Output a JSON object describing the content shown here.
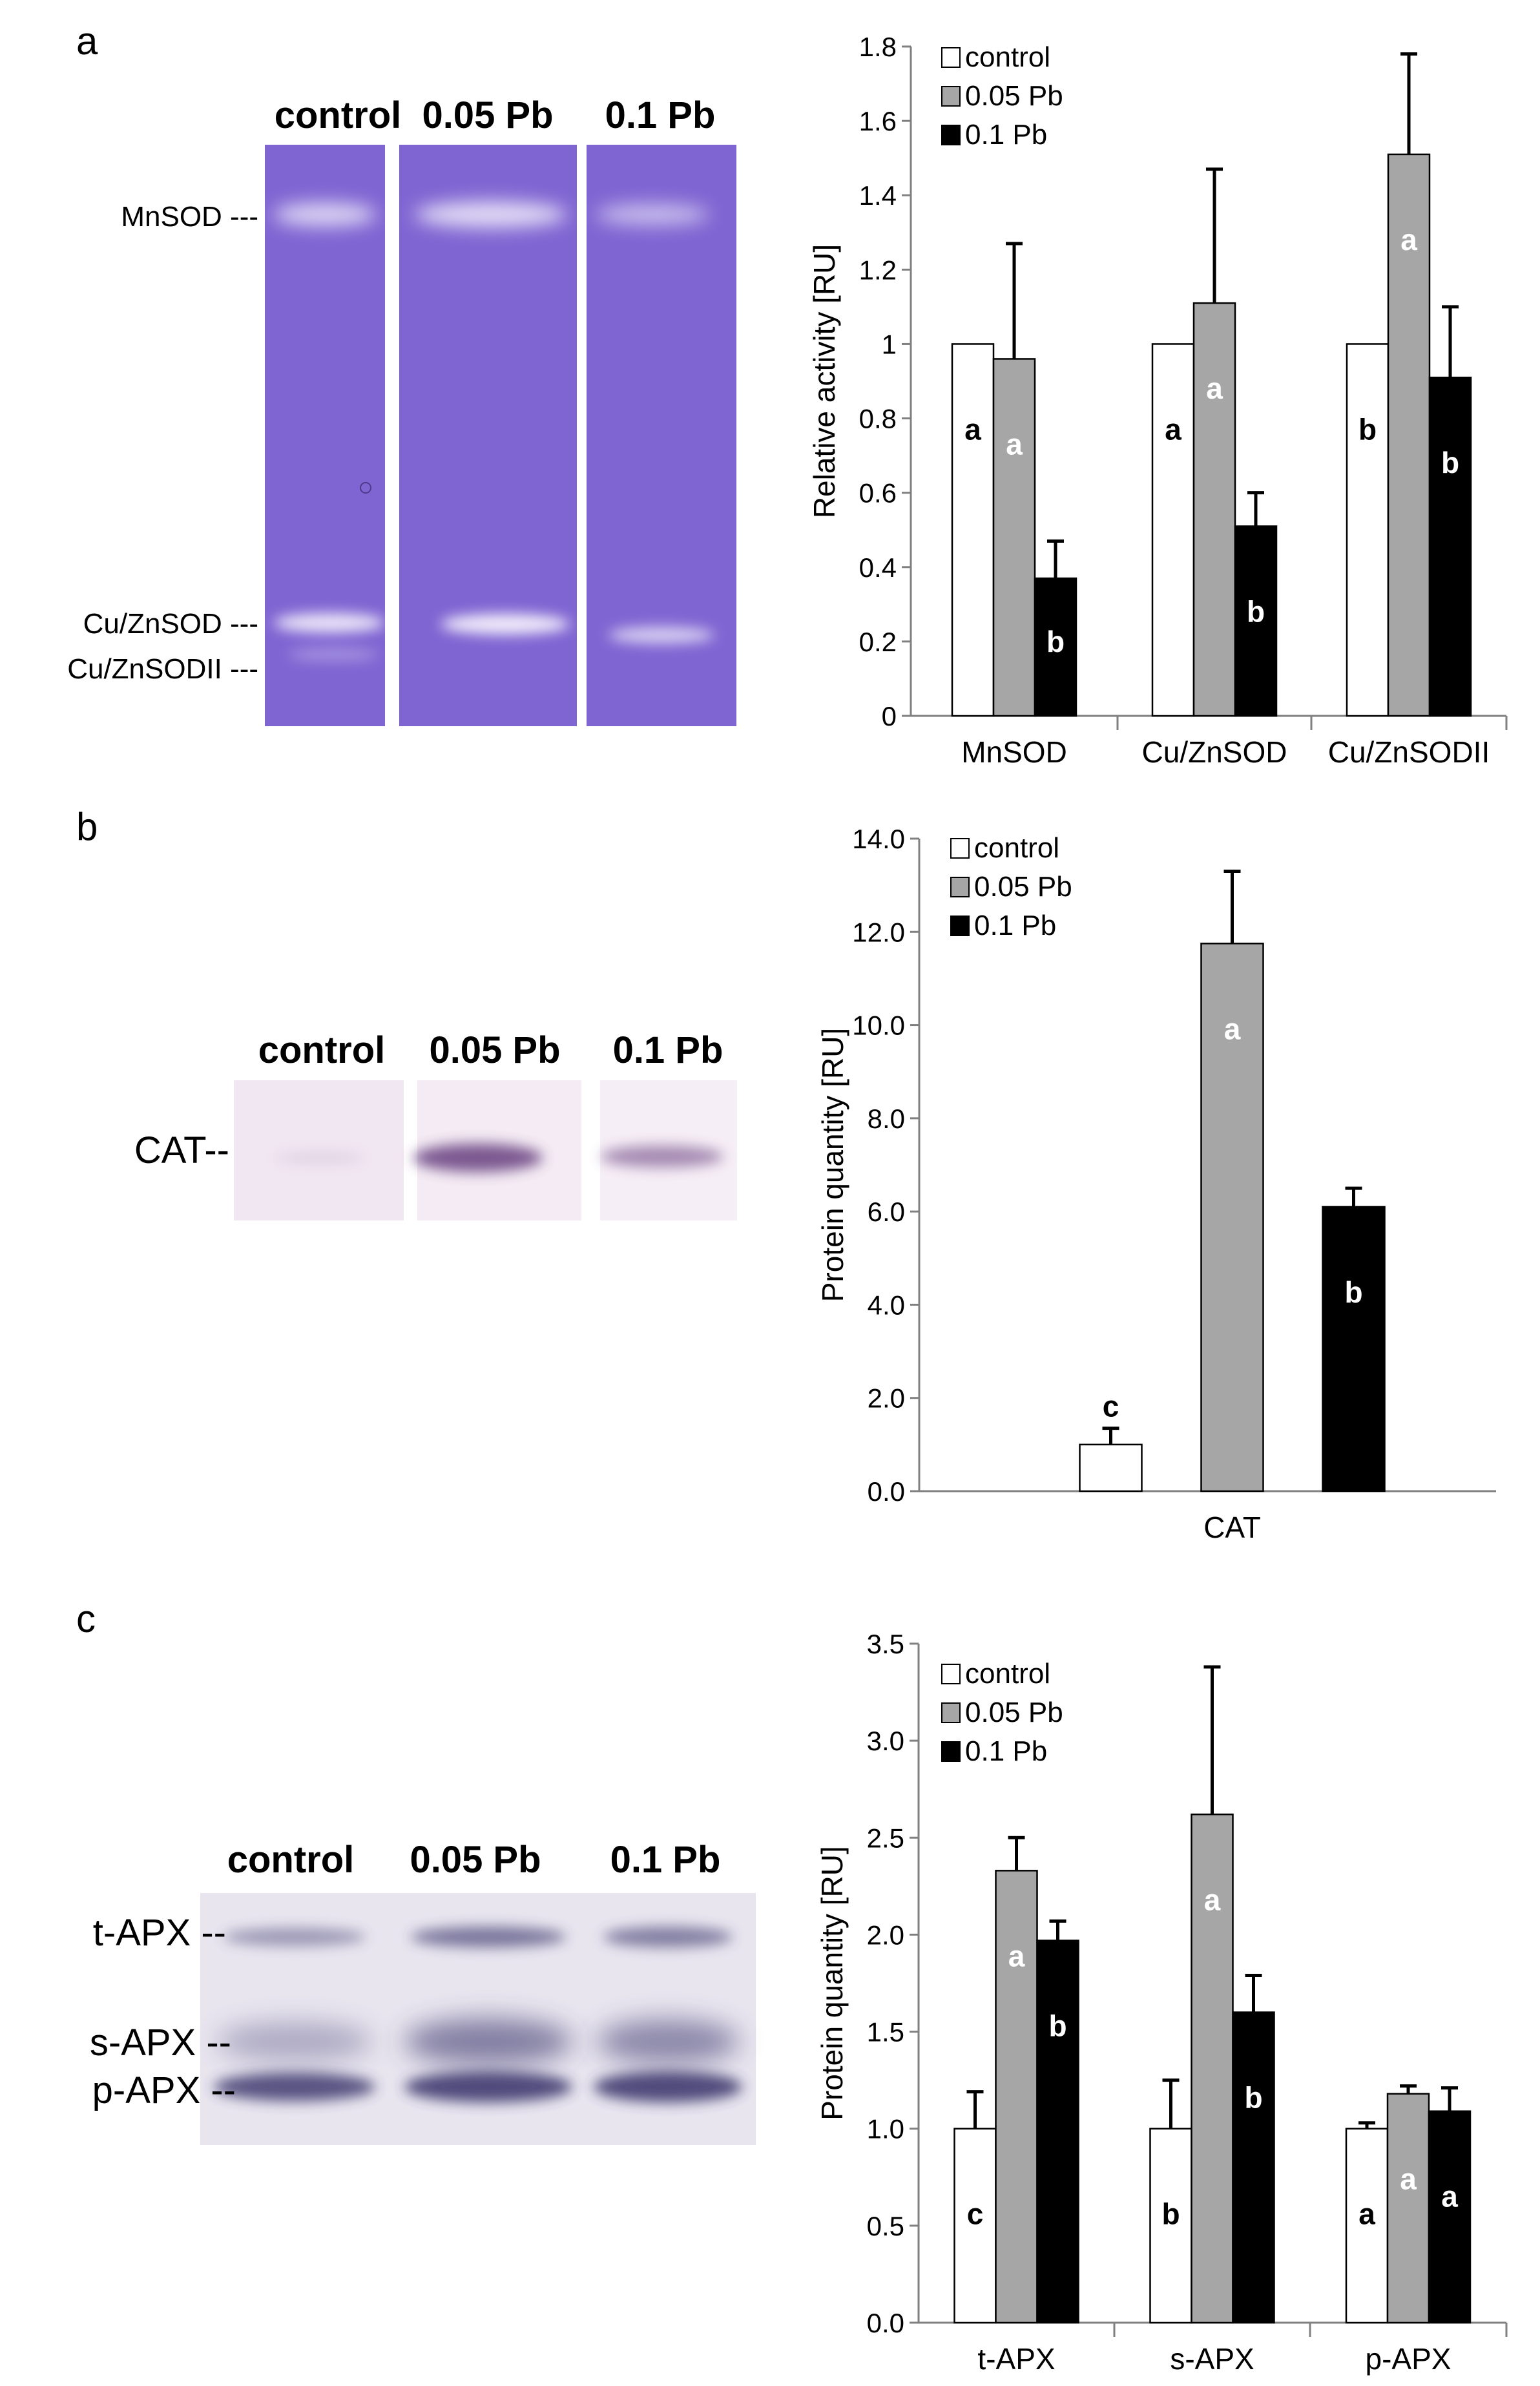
{
  "panels": {
    "a": {
      "letter": "a",
      "gel": {
        "lanes": [
          "control",
          "0.05 Pb",
          "0.1 Pb"
        ],
        "bands": [
          "MnSOD ---",
          "Cu/ZnSOD ---",
          "Cu/ZnSODII ---"
        ],
        "colors": {
          "background": "#7f65d2",
          "band": "#fdfbff"
        }
      }
    },
    "b": {
      "letter": "b",
      "blot": {
        "lanes": [
          "control",
          "0.05 Pb",
          "0.1 Pb"
        ],
        "bands": [
          "CAT--"
        ],
        "colors": {
          "background": "#f1e7f2",
          "band": "#6f4a86"
        }
      }
    },
    "c": {
      "letter": "c",
      "blot": {
        "lanes": [
          "control",
          "0.05 Pb",
          "0.1 Pb"
        ],
        "bands": [
          "t-APX --",
          "s-APX --",
          "p-APX --"
        ],
        "colors": {
          "background": "#e8e5ef",
          "band": "#3f3a70"
        }
      }
    }
  },
  "chart_data": [
    {
      "panel": "a",
      "type": "bar",
      "categories": [
        "MnSOD",
        "Cu/ZnSOD",
        "Cu/ZnSODII"
      ],
      "series": [
        {
          "name": "control",
          "color": "#ffffff",
          "values": [
            1.0,
            1.0,
            1.0
          ],
          "errors": [
            0,
            0,
            0
          ],
          "letters": [
            "a",
            "a",
            "b"
          ]
        },
        {
          "name": "0.05 Pb",
          "color": "#a6a6a6",
          "values": [
            0.96,
            1.11,
            1.51
          ],
          "errors": [
            0.31,
            0.36,
            0.27
          ],
          "letters": [
            "a",
            "a",
            "a"
          ]
        },
        {
          "name": "0.1 Pb",
          "color": "#000000",
          "values": [
            0.37,
            0.51,
            0.91
          ],
          "errors": [
            0.1,
            0.09,
            0.19
          ],
          "letters": [
            "b",
            "b",
            "b"
          ]
        }
      ],
      "ylabel": "Relative activity [RU]",
      "ylim": [
        0,
        1.8
      ],
      "yticks": [
        "0",
        "0.2",
        "0.4",
        "0.6",
        "0.8",
        "1",
        "1.2",
        "1.4",
        "1.6",
        "1.8"
      ],
      "legend": "top-left"
    },
    {
      "panel": "b",
      "type": "bar",
      "categories": [
        "CAT"
      ],
      "series": [
        {
          "name": "control",
          "color": "#ffffff",
          "values": [
            1.0
          ],
          "errors": [
            0.35
          ],
          "letters": [
            "c"
          ]
        },
        {
          "name": "0.05 Pb",
          "color": "#a6a6a6",
          "values": [
            11.75
          ],
          "errors": [
            1.55
          ],
          "letters": [
            "a"
          ]
        },
        {
          "name": "0.1 Pb",
          "color": "#000000",
          "values": [
            6.1
          ],
          "errors": [
            0.4
          ],
          "letters": [
            "b"
          ]
        }
      ],
      "ylabel": "Protein quantity [RU]",
      "ylim": [
        0,
        14
      ],
      "yticks": [
        "0.0",
        "2.0",
        "4.0",
        "6.0",
        "8.0",
        "10.0",
        "12.0",
        "14.0"
      ],
      "legend": "top-left"
    },
    {
      "panel": "c",
      "type": "bar",
      "categories": [
        "t-APX",
        "s-APX",
        "p-APX"
      ],
      "series": [
        {
          "name": "control",
          "color": "#ffffff",
          "values": [
            1.0,
            1.0,
            1.0
          ],
          "errors": [
            0.19,
            0.25,
            0.03
          ],
          "letters": [
            "c",
            "b",
            "a"
          ]
        },
        {
          "name": "0.05 Pb",
          "color": "#a6a6a6",
          "values": [
            2.33,
            2.62,
            1.18
          ],
          "errors": [
            0.17,
            0.76,
            0.04
          ],
          "letters": [
            "a",
            "a",
            "a"
          ]
        },
        {
          "name": "0.1 Pb",
          "color": "#000000",
          "values": [
            1.97,
            1.6,
            1.09
          ],
          "errors": [
            0.1,
            0.19,
            0.12
          ],
          "letters": [
            "b",
            "b",
            "a"
          ]
        }
      ],
      "ylabel": "Protein quantity [RU]",
      "ylim": [
        0,
        3.5
      ],
      "yticks": [
        "0.0",
        "0.5",
        "1.0",
        "1.5",
        "2.0",
        "2.5",
        "3.0",
        "3.5"
      ],
      "legend": "top-left"
    }
  ]
}
